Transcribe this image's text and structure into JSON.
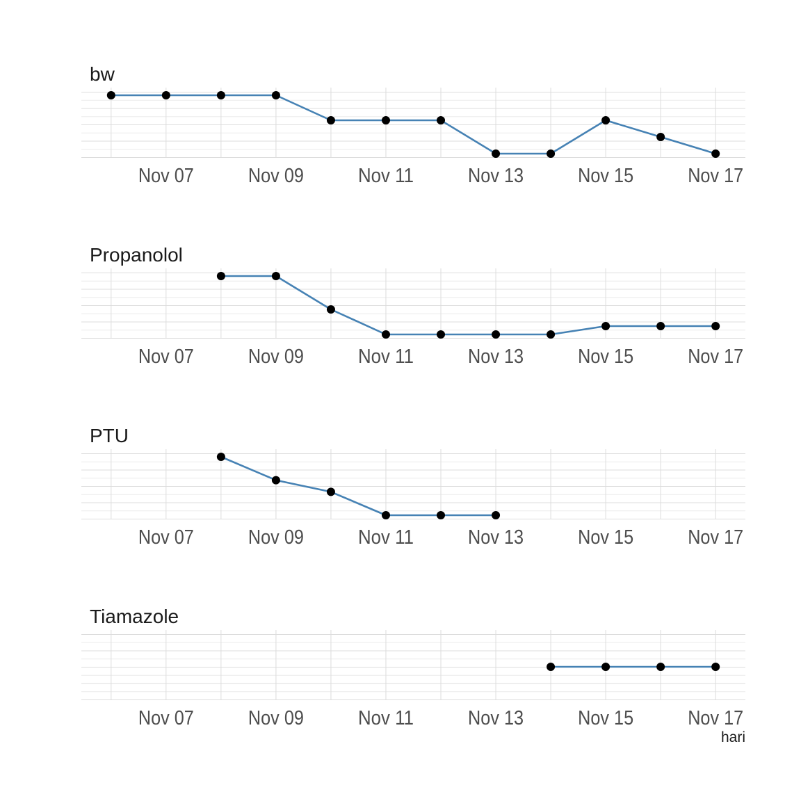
{
  "chart_data": {
    "type": "line",
    "caption": "hari",
    "x_ticks": [
      "Nov 07",
      "Nov 09",
      "Nov 11",
      "Nov 13",
      "Nov 15",
      "Nov 17"
    ],
    "x_tick_dates": [
      "2021-11-07",
      "2021-11-09",
      "2021-11-11",
      "2021-11-13",
      "2021-11-15",
      "2021-11-17"
    ],
    "x_range": [
      "2021-11-05T11:00",
      "2021-11-17T13:00"
    ],
    "grid": true,
    "line_color": "#4682b4",
    "point_color": "#000000",
    "panels": [
      {
        "title": "bw",
        "ylim": [
          0,
          3.5
        ],
        "points": [
          {
            "x": "2021-11-06",
            "y": 3.5
          },
          {
            "x": "2021-11-07",
            "y": 3.5
          },
          {
            "x": "2021-11-08",
            "y": 3.5
          },
          {
            "x": "2021-11-09",
            "y": 3.5
          },
          {
            "x": "2021-11-10",
            "y": 2.0
          },
          {
            "x": "2021-11-11",
            "y": 2.0
          },
          {
            "x": "2021-11-12",
            "y": 2.0
          },
          {
            "x": "2021-11-13",
            "y": 0
          },
          {
            "x": "2021-11-14",
            "y": 0
          },
          {
            "x": "2021-11-15",
            "y": 2.0
          },
          {
            "x": "2021-11-16",
            "y": 1.0
          },
          {
            "x": "2021-11-17",
            "y": 0
          }
        ]
      },
      {
        "title": "Propanolol",
        "ylim": [
          0,
          7
        ],
        "points": [
          {
            "x": "2021-11-08",
            "y": 7
          },
          {
            "x": "2021-11-09",
            "y": 7
          },
          {
            "x": "2021-11-10",
            "y": 3
          },
          {
            "x": "2021-11-11",
            "y": 0
          },
          {
            "x": "2021-11-12",
            "y": 0
          },
          {
            "x": "2021-11-13",
            "y": 0
          },
          {
            "x": "2021-11-14",
            "y": 0
          },
          {
            "x": "2021-11-15",
            "y": 1
          },
          {
            "x": "2021-11-16",
            "y": 1
          },
          {
            "x": "2021-11-17",
            "y": 1
          }
        ]
      },
      {
        "title": "PTU",
        "ylim": [
          0,
          5
        ],
        "points": [
          {
            "x": "2021-11-08",
            "y": 5
          },
          {
            "x": "2021-11-09",
            "y": 3
          },
          {
            "x": "2021-11-10",
            "y": 2
          },
          {
            "x": "2021-11-11",
            "y": 0
          },
          {
            "x": "2021-11-12",
            "y": 0
          },
          {
            "x": "2021-11-13",
            "y": 0
          }
        ]
      },
      {
        "title": "Tiamazole",
        "ylim": [
          0,
          2
        ],
        "points": [
          {
            "x": "2021-11-14",
            "y": 1
          },
          {
            "x": "2021-11-15",
            "y": 1
          },
          {
            "x": "2021-11-16",
            "y": 1
          },
          {
            "x": "2021-11-17",
            "y": 1
          }
        ]
      }
    ]
  }
}
